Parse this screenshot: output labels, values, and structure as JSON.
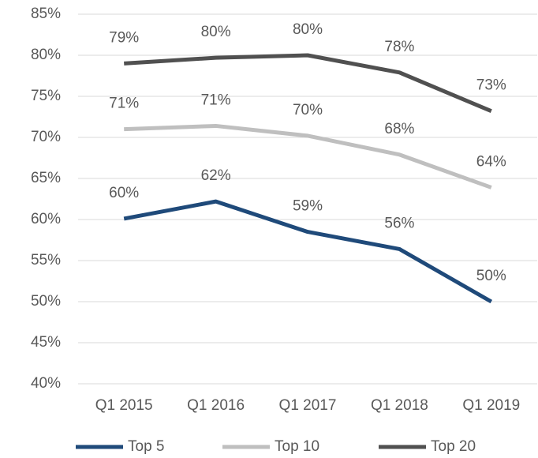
{
  "chart_data": {
    "type": "line",
    "categories": [
      "Q1 2015",
      "Q1 2016",
      "Q1 2017",
      "Q1 2018",
      "Q1 2019"
    ],
    "series": [
      {
        "name": "Top 5",
        "color": "#1f4a7a",
        "values": [
          60.1,
          62.2,
          58.5,
          56.4,
          50.0
        ],
        "value_labels": [
          "60%",
          "62%",
          "59%",
          "56%",
          "50%"
        ]
      },
      {
        "name": "Top 10",
        "color": "#bfbfbf",
        "values": [
          71.0,
          71.4,
          70.2,
          67.9,
          63.9
        ],
        "value_labels": [
          "71%",
          "71%",
          "70%",
          "68%",
          "64%"
        ]
      },
      {
        "name": "Top 20",
        "color": "#505050",
        "values": [
          79.0,
          79.7,
          80.0,
          77.9,
          73.2
        ],
        "value_labels": [
          "79%",
          "80%",
          "80%",
          "78%",
          "73%"
        ]
      }
    ],
    "ylim": [
      40,
      85
    ],
    "yticks": [
      {
        "value": 40,
        "label": "40%"
      },
      {
        "value": 45,
        "label": "45%"
      },
      {
        "value": 50,
        "label": "50%"
      },
      {
        "value": 55,
        "label": "55%"
      },
      {
        "value": 60,
        "label": "60%"
      },
      {
        "value": 65,
        "label": "65%"
      },
      {
        "value": 70,
        "label": "70%"
      },
      {
        "value": 75,
        "label": "75%"
      },
      {
        "value": 80,
        "label": "80%"
      },
      {
        "value": 85,
        "label": "85%"
      }
    ],
    "grid": true,
    "legend": "bottom"
  }
}
